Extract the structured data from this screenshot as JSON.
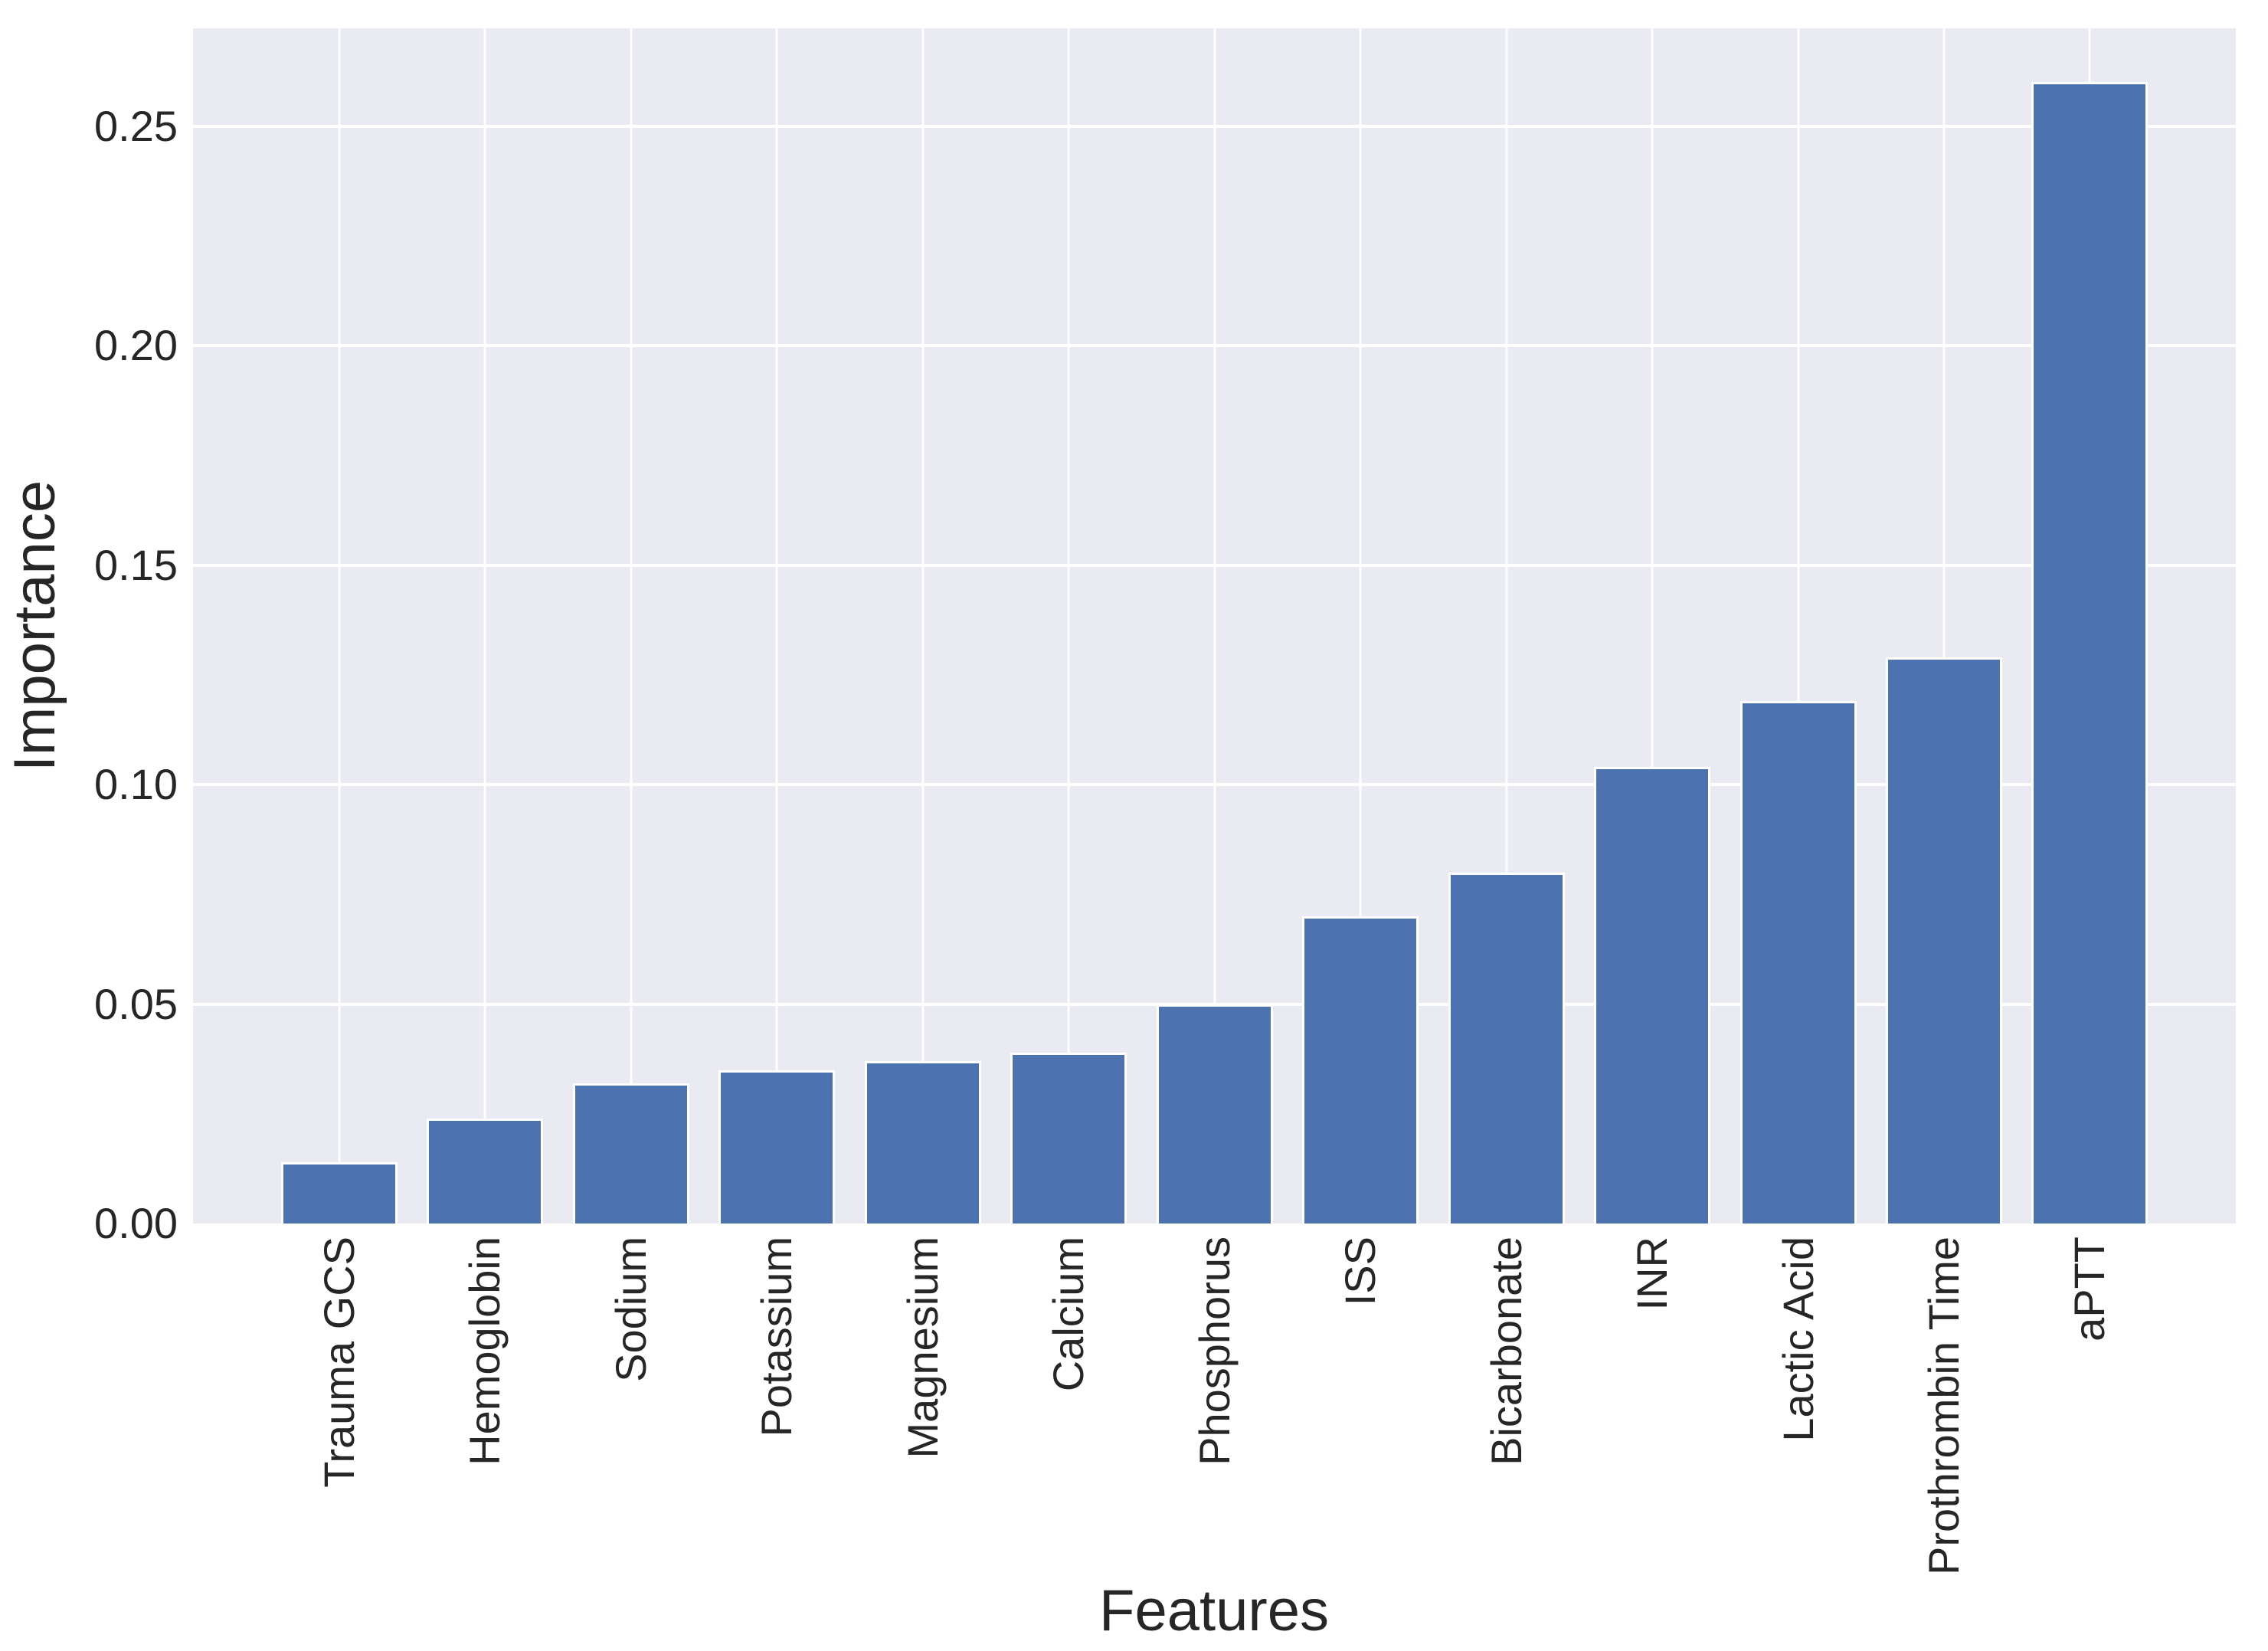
{
  "chart_data": {
    "type": "bar",
    "title": "",
    "xlabel": "Features",
    "ylabel": "Importance",
    "categories": [
      "Trauma GCS",
      "Hemoglobin",
      "Sodium",
      "Potassium",
      "Magnesium",
      "Calcium",
      "Phosphorus",
      "ISS",
      "Bicarbonate",
      "INR",
      "Lactic Acid",
      "Prothrombin Time",
      "aPTT"
    ],
    "values": [
      0.014,
      0.024,
      0.032,
      0.035,
      0.037,
      0.039,
      0.05,
      0.07,
      0.08,
      0.104,
      0.119,
      0.129,
      0.26
    ],
    "ylim": [
      0,
      0.2723
    ],
    "xlim": [
      -1,
      13
    ],
    "yticks": [
      0,
      0.05,
      0.1,
      0.15,
      0.2,
      0.25
    ],
    "ytick_labels": [
      "0.00",
      "0.05",
      "0.10",
      "0.15",
      "0.20",
      "0.25"
    ],
    "grid": true,
    "legend": false,
    "style": {
      "bar_color": "#4c72b0",
      "bar_edge_color": "#ffffff",
      "plot_background": "#eaeaf2",
      "grid_color": "#ffffff",
      "figure_background": "#ffffff",
      "text_color": "#262626"
    }
  }
}
